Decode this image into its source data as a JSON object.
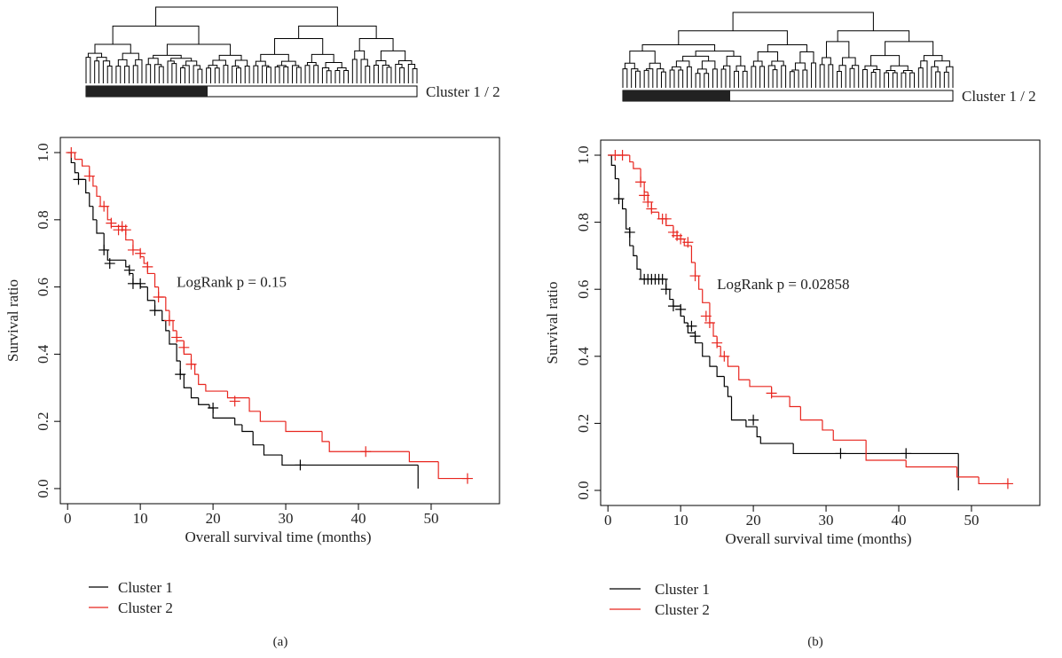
{
  "chart_data": [
    {
      "type": "step",
      "label": "(a)",
      "xlabel": "Overall survival time (months)",
      "ylabel": "Survival ratio",
      "annotation": "LogRank p = 0.15",
      "cluster_bar_label": "Cluster 1 / 2",
      "xlim": [
        -1,
        59.4
      ],
      "ylim": [
        -0.045,
        1.045
      ],
      "xticks": [
        0,
        10,
        20,
        30,
        40,
        50
      ],
      "yticks": [
        {
          "value": 0,
          "label": "0.0"
        },
        {
          "value": 0.2,
          "label": "0.2"
        },
        {
          "value": 0.4,
          "label": "0.4"
        },
        {
          "value": 0.6,
          "label": "0.6"
        },
        {
          "value": 0.8,
          "label": "0.8"
        },
        {
          "value": 1,
          "label": "1.0"
        }
      ],
      "legend": "bottom-left",
      "series": [
        {
          "name": "Cluster 1",
          "color": "#000000",
          "x": [
            0,
            0.5,
            1,
            1.5,
            2.5,
            3,
            3.5,
            4,
            5,
            5.5,
            8,
            8.5,
            9,
            10,
            11,
            12,
            13,
            13.5,
            14,
            15,
            15.5,
            16,
            17,
            18,
            19.5,
            20,
            23,
            24,
            25.5,
            27,
            29.5,
            48.2
          ],
          "values": [
            1.0,
            0.97,
            0.94,
            0.92,
            0.88,
            0.84,
            0.8,
            0.76,
            0.71,
            0.68,
            0.66,
            0.64,
            0.61,
            0.6,
            0.56,
            0.53,
            0.5,
            0.47,
            0.43,
            0.38,
            0.34,
            0.3,
            0.27,
            0.25,
            0.24,
            0.21,
            0.19,
            0.17,
            0.13,
            0.1,
            0.07,
            0.0
          ],
          "censor_x": [
            1.5,
            5,
            5.8,
            8.5,
            9,
            10,
            12,
            15.5,
            20,
            32
          ],
          "censor_values": [
            0.92,
            0.71,
            0.67,
            0.65,
            0.61,
            0.61,
            0.53,
            0.34,
            0.24,
            0.07
          ]
        },
        {
          "name": "Cluster 2",
          "color": "#e8261f",
          "x": [
            0,
            1,
            2,
            3,
            3.5,
            4,
            4.5,
            5.5,
            6,
            7.5,
            8,
            9,
            10,
            10.5,
            11,
            12,
            12.5,
            13.5,
            14,
            14.5,
            15,
            16,
            17,
            17.5,
            18,
            19,
            22,
            25,
            26.5,
            30,
            35,
            36,
            47,
            51,
            55
          ],
          "values": [
            1.0,
            0.98,
            0.96,
            0.93,
            0.9,
            0.87,
            0.84,
            0.8,
            0.78,
            0.77,
            0.74,
            0.71,
            0.69,
            0.67,
            0.64,
            0.6,
            0.57,
            0.53,
            0.5,
            0.47,
            0.44,
            0.4,
            0.37,
            0.34,
            0.31,
            0.29,
            0.27,
            0.23,
            0.2,
            0.17,
            0.14,
            0.11,
            0.08,
            0.03,
            0.03
          ],
          "censor_x": [
            0.5,
            3,
            5,
            6,
            7,
            7.5,
            8,
            9,
            10,
            11,
            12.5,
            14,
            15,
            16,
            17,
            23,
            41,
            55
          ],
          "censor_values": [
            1.0,
            0.93,
            0.84,
            0.79,
            0.77,
            0.78,
            0.77,
            0.71,
            0.7,
            0.66,
            0.57,
            0.5,
            0.45,
            0.42,
            0.37,
            0.26,
            0.11,
            0.03
          ]
        }
      ]
    },
    {
      "type": "step",
      "label": "(b)",
      "xlabel": "Overall survival time (months)",
      "ylabel": "Survival ratio",
      "annotation": "LogRank p = 0.02858",
      "cluster_bar_label": "Cluster 1 / 2",
      "xlim": [
        -1,
        59.4
      ],
      "ylim": [
        -0.045,
        1.045
      ],
      "xticks": [
        0,
        10,
        20,
        30,
        40,
        50
      ],
      "yticks": [
        {
          "value": 0,
          "label": "0.0"
        },
        {
          "value": 0.2,
          "label": "0.2"
        },
        {
          "value": 0.4,
          "label": "0.4"
        },
        {
          "value": 0.6,
          "label": "0.6"
        },
        {
          "value": 0.8,
          "label": "0.8"
        },
        {
          "value": 1,
          "label": "1.0"
        }
      ],
      "legend": "bottom-left",
      "series": [
        {
          "name": "Cluster 1",
          "color": "#000000",
          "x": [
            0,
            0.5,
            1,
            1.5,
            2,
            2.5,
            3,
            3.5,
            4,
            4.5,
            8,
            8.5,
            9,
            10,
            10.5,
            11,
            12,
            13,
            14,
            15,
            16,
            16.5,
            17,
            19,
            20.5,
            21,
            25.5,
            48.2
          ],
          "values": [
            1.0,
            0.97,
            0.93,
            0.87,
            0.84,
            0.78,
            0.73,
            0.7,
            0.66,
            0.63,
            0.6,
            0.57,
            0.55,
            0.52,
            0.5,
            0.47,
            0.44,
            0.4,
            0.37,
            0.34,
            0.31,
            0.28,
            0.21,
            0.19,
            0.16,
            0.14,
            0.11,
            0.0
          ],
          "censor_x": [
            1.5,
            3,
            5,
            5.5,
            6,
            6.5,
            7,
            7.5,
            8,
            9,
            10,
            11.5,
            12,
            20,
            32,
            41
          ],
          "censor_values": [
            0.87,
            0.77,
            0.63,
            0.63,
            0.63,
            0.63,
            0.63,
            0.63,
            0.6,
            0.55,
            0.54,
            0.49,
            0.46,
            0.21,
            0.11,
            0.11
          ]
        },
        {
          "name": "Cluster 2",
          "color": "#e8261f",
          "x": [
            0,
            3,
            3.5,
            4.5,
            5,
            5.5,
            6,
            7,
            8,
            9,
            9.5,
            10.5,
            11.5,
            12,
            12.5,
            13,
            14,
            14.5,
            15,
            15.5,
            16.5,
            18,
            19.5,
            22.5,
            25,
            26.5,
            29.5,
            31,
            35.5,
            41,
            48,
            51,
            55
          ],
          "values": [
            1.0,
            0.98,
            0.96,
            0.92,
            0.89,
            0.86,
            0.83,
            0.81,
            0.79,
            0.77,
            0.75,
            0.73,
            0.68,
            0.64,
            0.6,
            0.56,
            0.5,
            0.46,
            0.43,
            0.4,
            0.37,
            0.33,
            0.31,
            0.28,
            0.25,
            0.21,
            0.18,
            0.15,
            0.09,
            0.07,
            0.04,
            0.02,
            0.02
          ],
          "censor_x": [
            1,
            2,
            4.5,
            5,
            5.5,
            6,
            7.5,
            8,
            9,
            9.5,
            10,
            11,
            12,
            13.5,
            14,
            15,
            16,
            22.5,
            55
          ],
          "censor_values": [
            1.0,
            1.0,
            0.92,
            0.88,
            0.86,
            0.84,
            0.81,
            0.81,
            0.77,
            0.76,
            0.75,
            0.74,
            0.64,
            0.52,
            0.5,
            0.44,
            0.4,
            0.29,
            0.02
          ]
        }
      ]
    }
  ]
}
